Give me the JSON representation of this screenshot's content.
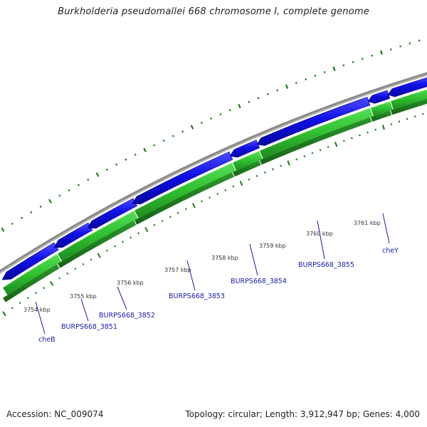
{
  "title": "Burkholderia pseudomallei 668 chromosome I, complete genome",
  "footer": {
    "accession": "Accession: NC_009074",
    "summary": "Topology: circular; Length: 3,912,947 bp; Genes: 4,000"
  },
  "colors": {
    "forward_gene": "#1010e6",
    "reverse_gene": "#33cc33",
    "backbone": "#8c8c8c",
    "tick": "#1f7a1f",
    "label": "#1a1aa8"
  },
  "scale_labels": [
    "3754 kbp",
    "3755 kbp",
    "3756 kbp",
    "3757 kbp",
    "3758 kbp",
    "3759 kbp",
    "3760 kbp",
    "3761 kbp"
  ],
  "gene_labels": [
    "cheB",
    "BURPS668_3851",
    "BURPS668_3852",
    "BURPS668_3853",
    "BURPS668_3854",
    "BURPS668_3855",
    "cheY"
  ]
}
